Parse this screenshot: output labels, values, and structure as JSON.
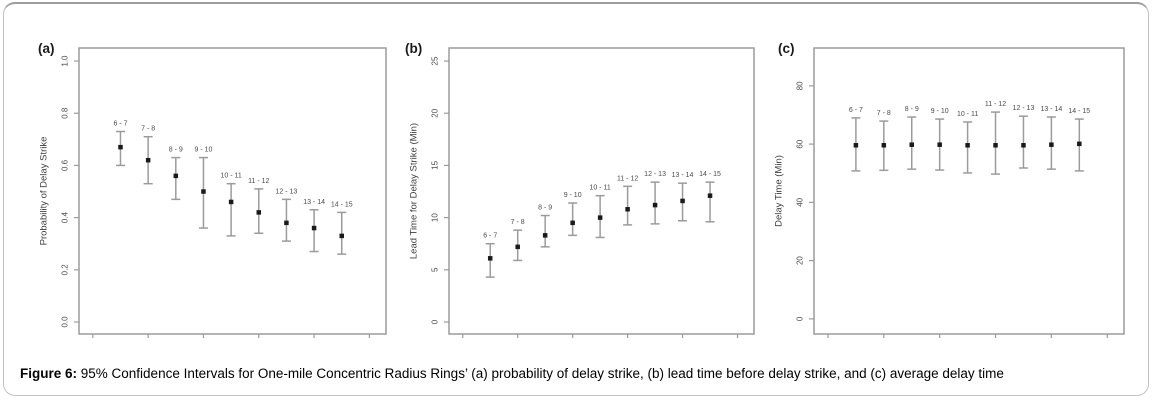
{
  "figure": {
    "caption_label": "Figure 6:",
    "caption_text": " 95% Confidence Intervals for One-mile Concentric Radius Rings’ (a) probability of delay strike, (b) lead time before delay strike, and (c) average delay time"
  },
  "colors": {
    "error_bar": "#9b9b9b",
    "marker": "#1a1a1a",
    "box_stroke": "#9b9b9b",
    "tick_mark": "#9b9b9b",
    "tick_label": "#4a4a4a",
    "axis_title": "#3d3d3d",
    "category_label": "#4a4a4a",
    "panel_label": "#1a1a1a"
  },
  "chart_data": [
    {
      "type": "scatter",
      "panel_label": "(a)",
      "title": "",
      "xlabel": "",
      "ylabel": "Probability of Delay Strike",
      "error_bars": "95% confidence interval",
      "grid": false,
      "legend": "none",
      "categories": [
        "6 - 7",
        "7 - 8",
        "8 - 9",
        "9 - 10",
        "10 - 11",
        "11 - 12",
        "12 - 13",
        "13 - 14",
        "14 - 15"
      ],
      "series": [
        {
          "name": "mean",
          "values": [
            0.67,
            0.62,
            0.56,
            0.5,
            0.46,
            0.42,
            0.38,
            0.36,
            0.33
          ]
        },
        {
          "name": "ci_low",
          "values": [
            0.6,
            0.53,
            0.47,
            0.36,
            0.33,
            0.34,
            0.31,
            0.27,
            0.26
          ]
        },
        {
          "name": "ci_high",
          "values": [
            0.73,
            0.71,
            0.63,
            0.63,
            0.53,
            0.51,
            0.47,
            0.43,
            0.42
          ]
        }
      ],
      "yticks": [
        0.0,
        0.2,
        0.4,
        0.6,
        0.8,
        1.0
      ],
      "ytick_labels": [
        "0.0",
        "0.2",
        "0.4",
        "0.6",
        "0.8",
        "1.0"
      ],
      "ylim": [
        -0.046,
        1.05
      ],
      "xticks": [
        0,
        2,
        4,
        6,
        8,
        10
      ],
      "xlim": [
        -0.5,
        10.6
      ]
    },
    {
      "type": "scatter",
      "panel_label": "(b)",
      "title": "",
      "xlabel": "",
      "ylabel": "Lead Time for Delay Strike (Min)",
      "error_bars": "95% confidence interval",
      "grid": false,
      "legend": "none",
      "categories": [
        "6 - 7",
        "7 - 8",
        "8 - 9",
        "9 - 10",
        "10 - 11",
        "11 - 12",
        "12 - 13",
        "13 - 14",
        "14 - 15"
      ],
      "series": [
        {
          "name": "mean",
          "values": [
            6.1,
            7.2,
            8.3,
            9.5,
            10.0,
            10.8,
            11.2,
            11.6,
            12.1
          ]
        },
        {
          "name": "ci_low",
          "values": [
            4.3,
            5.9,
            7.2,
            8.3,
            8.1,
            9.3,
            9.4,
            9.7,
            9.6
          ]
        },
        {
          "name": "ci_high",
          "values": [
            7.5,
            8.8,
            10.2,
            11.4,
            12.1,
            13.0,
            13.4,
            13.3,
            13.4
          ]
        }
      ],
      "yticks": [
        0,
        5,
        10,
        15,
        20,
        25
      ],
      "ytick_labels": [
        "0",
        "5",
        "10",
        "15",
        "20",
        "25"
      ],
      "ylim": [
        -1.15,
        26.25
      ],
      "xticks": [
        0,
        2,
        4,
        6,
        8,
        10
      ],
      "xlim": [
        -0.5,
        10.6
      ]
    },
    {
      "type": "scatter",
      "panel_label": "(c)",
      "title": "",
      "xlabel": "",
      "ylabel": "Delay Time (Min)",
      "error_bars": "95% confidence interval",
      "grid": false,
      "legend": "none",
      "categories": [
        "6 - 7",
        "7 - 8",
        "8 - 9",
        "9 - 10",
        "10 - 11",
        "11 - 12",
        "12 - 13",
        "13 - 14",
        "14 - 15"
      ],
      "series": [
        {
          "name": "mean",
          "values": [
            59.6,
            59.6,
            59.8,
            59.8,
            59.6,
            59.6,
            59.6,
            59.8,
            60.1
          ]
        },
        {
          "name": "ci_low",
          "values": [
            50.8,
            51.0,
            51.4,
            51.1,
            50.1,
            49.7,
            51.8,
            51.4,
            50.8
          ]
        },
        {
          "name": "ci_high",
          "values": [
            69.0,
            67.9,
            69.3,
            68.6,
            67.6,
            71.0,
            69.6,
            69.3,
            68.6
          ]
        }
      ],
      "yticks": [
        0,
        20,
        40,
        60,
        80
      ],
      "ytick_labels": [
        "0",
        "20",
        "40",
        "60",
        "80"
      ],
      "ylim": [
        -5.2,
        93.0
      ],
      "xticks": [
        0,
        2,
        4,
        6,
        8,
        10
      ],
      "xlim": [
        -0.5,
        10.6
      ]
    }
  ]
}
